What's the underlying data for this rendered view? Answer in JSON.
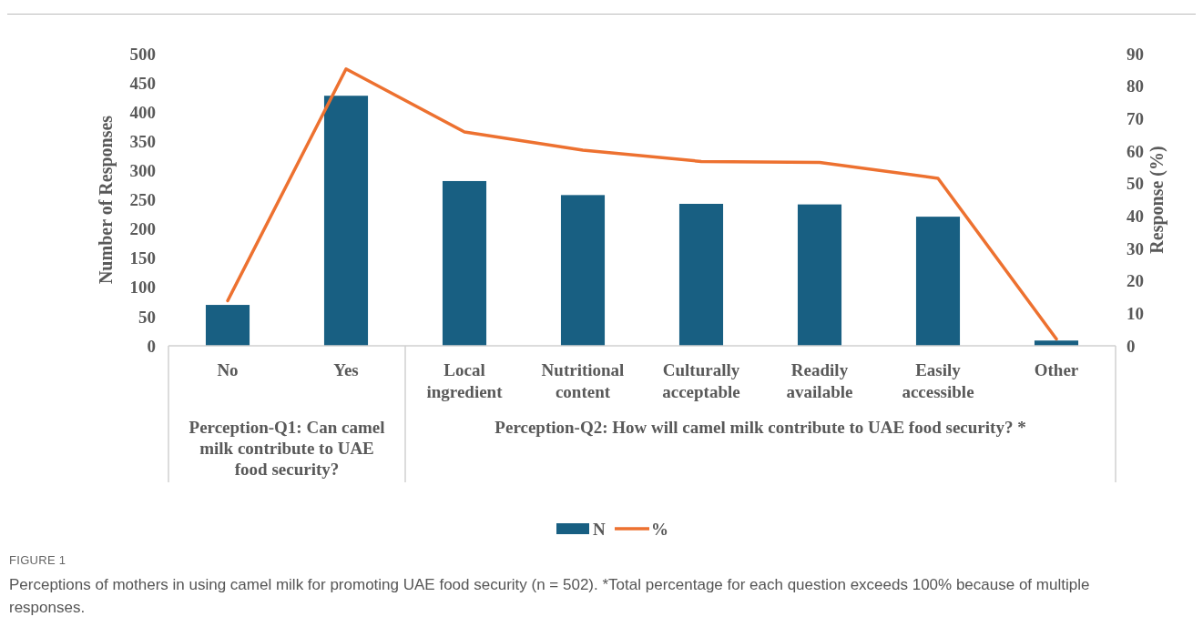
{
  "chart_data": {
    "type": "bar",
    "title": "FIGURE 1",
    "ylabel": "Number of Responses",
    "y2label": "Response (%)",
    "categories": [
      "No",
      "Yes",
      "Local ingredient",
      "Nutritional content",
      "Culturally acceptable",
      "Readily available",
      "Easily accessible",
      "Other"
    ],
    "series": [
      {
        "name": "N",
        "color": "#185f82",
        "values": [
          70,
          428,
          282,
          258,
          243,
          242,
          221,
          9
        ]
      },
      {
        "name": "%",
        "type": "line",
        "axis": "y2",
        "color": "#ed7130",
        "values": [
          13.9,
          85.3,
          65.9,
          60.3,
          56.8,
          56.5,
          51.6,
          2.1
        ]
      }
    ],
    "ylim": [
      0,
      500
    ],
    "yticks": [
      0,
      50,
      100,
      150,
      200,
      250,
      300,
      350,
      400,
      450,
      500
    ],
    "y2lim": [
      0,
      90
    ],
    "y2ticks": [
      0,
      10,
      20,
      30,
      40,
      50,
      60,
      70,
      80,
      90
    ],
    "grid": false,
    "legend": "bottom",
    "marker": "none",
    "line_style": "solid",
    "annotations": [
      "Perception-Q1: Can camel milk contribute to UAE food security?",
      "Perception-Q2: How will camel milk contribute to UAE food security? *",
      "Perceptions of mothers in using camel milk for promoting UAE food security (n = 502). *Total percentage for each question exceeds 100% because of multiple responses."
    ]
  }
}
